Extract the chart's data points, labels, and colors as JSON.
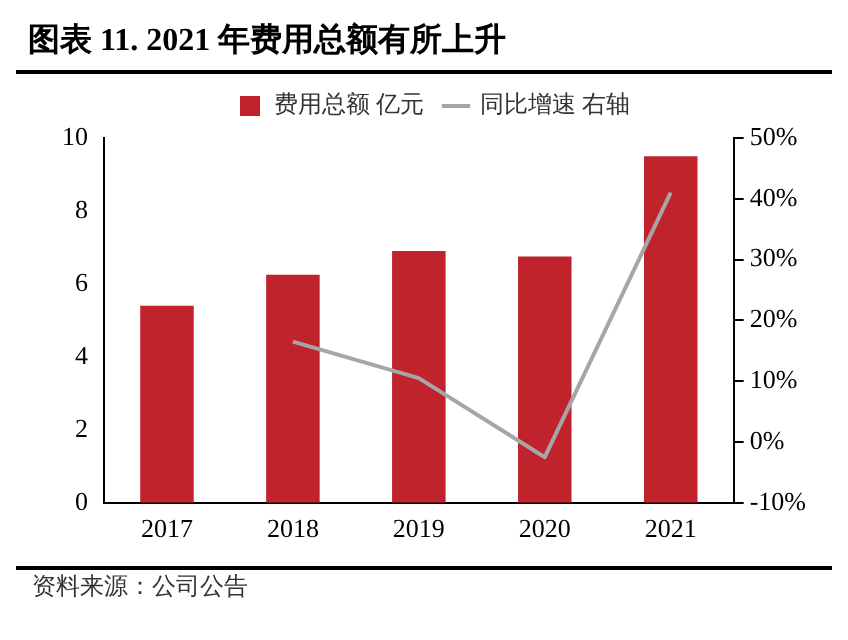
{
  "chart_data": {
    "type": "bar",
    "title": "图表 11. 2021 年费用总额有所上升",
    "categories": [
      "2017",
      "2018",
      "2019",
      "2020",
      "2021"
    ],
    "series": [
      {
        "name": "费用总额 亿元",
        "color": "#c0232c",
        "values": [
          5.4,
          6.25,
          6.9,
          6.75,
          9.5
        ]
      },
      {
        "name": "同比增速 右轴",
        "type": "line",
        "axis": "y2",
        "color": "#a6a6a6",
        "values": [
          null,
          16.5,
          10.5,
          -2.5,
          41
        ]
      }
    ],
    "ylim": [
      0,
      10
    ],
    "yticks": [
      0,
      2,
      4,
      6,
      8,
      10
    ],
    "y2lim": [
      -10,
      50
    ],
    "y2ticks": [
      {
        "value": -10,
        "label": "-10%"
      },
      {
        "value": 0,
        "label": "0%"
      },
      {
        "value": 10,
        "label": "10%"
      },
      {
        "value": 20,
        "label": "20%"
      },
      {
        "value": 30,
        "label": "30%"
      },
      {
        "value": 40,
        "label": "40%"
      },
      {
        "value": 50,
        "label": "50%"
      }
    ],
    "grid": false,
    "legend": "top",
    "marker": "none",
    "line_style": "solid",
    "annotations": [
      "资料来源：公司公告"
    ]
  }
}
